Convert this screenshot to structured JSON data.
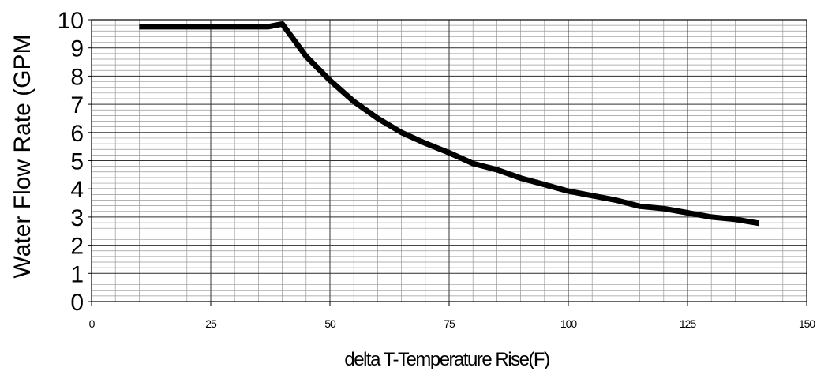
{
  "chart_data": {
    "type": "line",
    "title": "",
    "xlabel": "delta T-Temperature Rise(F)",
    "ylabel": "Water Flow Rate (GPM",
    "xlim": [
      0,
      150
    ],
    "ylim": [
      0,
      10
    ],
    "x_ticks": [
      "0",
      "25",
      "50",
      "75",
      "100",
      "125",
      "150"
    ],
    "y_ticks": [
      "0",
      "1",
      "2",
      "3",
      "4",
      "5",
      "6",
      "7",
      "8",
      "9",
      "10"
    ],
    "grid": true,
    "legend": "none",
    "line_color": "#000000",
    "series": [
      {
        "x": [
          10,
          15,
          20,
          25,
          30,
          35,
          37,
          40,
          45,
          50,
          55,
          60,
          65,
          70,
          75,
          80,
          85,
          90,
          95,
          100,
          105,
          110,
          115,
          120,
          125,
          130,
          135,
          140
        ],
        "y": [
          9.75,
          9.75,
          9.75,
          9.75,
          9.75,
          9.75,
          9.75,
          9.85,
          8.7,
          7.85,
          7.1,
          6.5,
          6.0,
          5.62,
          5.28,
          4.9,
          4.68,
          4.38,
          4.15,
          3.92,
          3.76,
          3.6,
          3.38,
          3.3,
          3.15,
          3.0,
          2.92,
          2.78
        ]
      }
    ]
  }
}
